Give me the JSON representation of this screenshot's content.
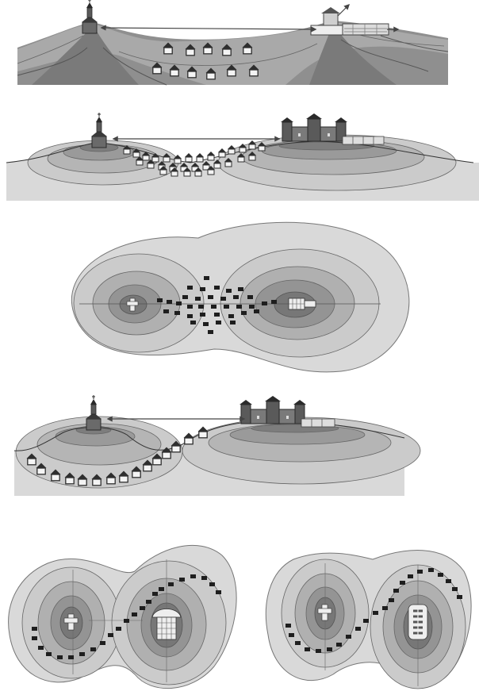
{
  "figure": {
    "panels": [
      {
        "id": "panel-1",
        "kind": "cross-section",
        "description_text": ""
      },
      {
        "id": "panel-2",
        "kind": "cross-section",
        "description_text": ""
      },
      {
        "id": "panel-3",
        "kind": "plan-view",
        "description_text": ""
      },
      {
        "id": "panel-4",
        "kind": "cross-section",
        "description_text": ""
      },
      {
        "id": "panel-5",
        "kind": "plan-view",
        "description_text": ""
      },
      {
        "id": "panel-6",
        "kind": "plan-view",
        "description_text": ""
      }
    ]
  },
  "icons": {
    "church": "church-icon",
    "castle": "castle-icon",
    "house": "house-icon",
    "arrow": "double-arrow-icon",
    "cross": "cross-icon",
    "tower": "tower-grid-icon"
  },
  "colors": {
    "contour_light": "#d9d9d9",
    "contour_mid1": "#bfbfbf",
    "contour_mid2": "#a5a5a5",
    "contour_dark1": "#8c8c8c",
    "contour_dark2": "#6f6f6f",
    "outline": "#555555",
    "building": "#3a3a3a"
  }
}
